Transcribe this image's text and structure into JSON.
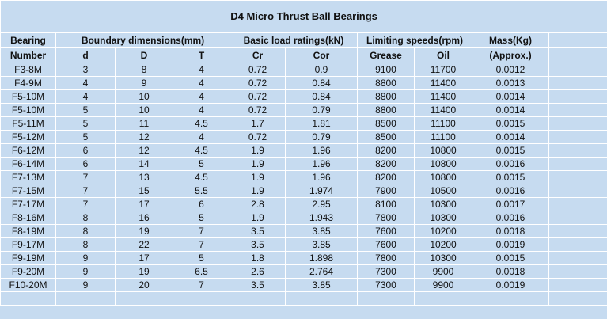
{
  "table": {
    "title": "D4 Micro Thrust Ball Bearings",
    "header_groups": [
      "Bearing",
      "Boundary dimensions(mm)",
      "Basic load ratings(kN)",
      "Limiting speeds(rpm)",
      "Mass(Kg)"
    ],
    "columns": [
      "Number",
      "d",
      "D",
      "T",
      "Cr",
      "Cor",
      "Grease",
      "Oil",
      "(Approx.)"
    ],
    "rows": [
      [
        "F3-8M",
        "3",
        "8",
        "4",
        "0.72",
        "0.9",
        "9100",
        "11700",
        "0.0012"
      ],
      [
        "F4-9M",
        "4",
        "9",
        "4",
        "0.72",
        "0.84",
        "8800",
        "11400",
        "0.0013"
      ],
      [
        "F5-10M",
        "4",
        "10",
        "4",
        "0.72",
        "0.84",
        "8800",
        "11400",
        "0.0014"
      ],
      [
        "F5-10M",
        "5",
        "10",
        "4",
        "0.72",
        "0.79",
        "8800",
        "11400",
        "0.0014"
      ],
      [
        "F5-11M",
        "5",
        "11",
        "4.5",
        "1.7",
        "1.81",
        "8500",
        "11100",
        "0.0015"
      ],
      [
        "F5-12M",
        "5",
        "12",
        "4",
        "0.72",
        "0.79",
        "8500",
        "11100",
        "0.0014"
      ],
      [
        "F6-12M",
        "6",
        "12",
        "4.5",
        "1.9",
        "1.96",
        "8200",
        "10800",
        "0.0015"
      ],
      [
        "F6-14M",
        "6",
        "14",
        "5",
        "1.9",
        "1.96",
        "8200",
        "10800",
        "0.0016"
      ],
      [
        "F7-13M",
        "7",
        "13",
        "4.5",
        "1.9",
        "1.96",
        "8200",
        "10800",
        "0.0015"
      ],
      [
        "F7-15M",
        "7",
        "15",
        "5.5",
        "1.9",
        "1.974",
        "7900",
        "10500",
        "0.0016"
      ],
      [
        "F7-17M",
        "7",
        "17",
        "6",
        "2.8",
        "2.95",
        "8100",
        "10300",
        "0.0017"
      ],
      [
        "F8-16M",
        "8",
        "16",
        "5",
        "1.9",
        "1.943",
        "7800",
        "10300",
        "0.0016"
      ],
      [
        "F8-19M",
        "8",
        "19",
        "7",
        "3.5",
        "3.85",
        "7600",
        "10200",
        "0.0018"
      ],
      [
        "F9-17M",
        "8",
        "22",
        "7",
        "3.5",
        "3.85",
        "7600",
        "10200",
        "0.0019"
      ],
      [
        "F9-19M",
        "9",
        "17",
        "5",
        "1.8",
        "1.898",
        "7800",
        "10300",
        "0.0015"
      ],
      [
        "F9-20M",
        "9",
        "19",
        "6.5",
        "2.6",
        "2.764",
        "7300",
        "9900",
        "0.0018"
      ],
      [
        "F10-20M",
        "9",
        "20",
        "7",
        "3.5",
        "3.85",
        "7300",
        "9900",
        "0.0019"
      ]
    ]
  }
}
